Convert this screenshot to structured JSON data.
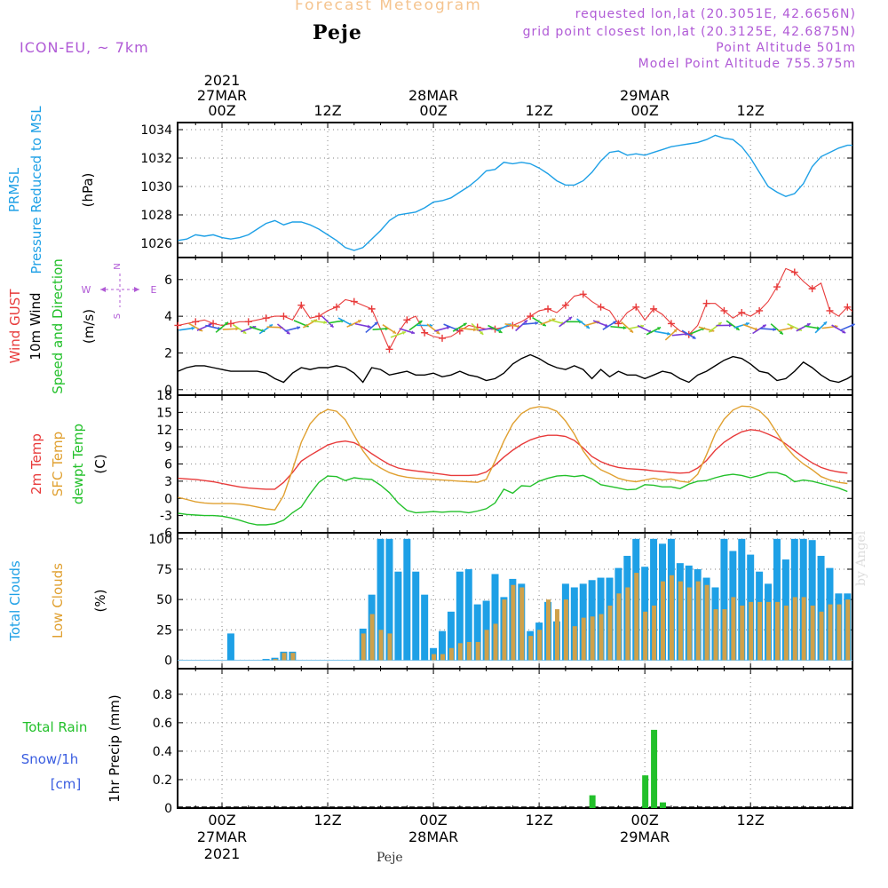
{
  "header": {
    "title": "Forecast Meteogram",
    "location": "Peje",
    "model": "ICON-EU, ~ 7km",
    "requested": "requested lon,lat (20.3051E, 42.6656N)",
    "gridpoint": "grid point closest lon,lat (20.3125E, 42.6875N)",
    "point_alt": "Point Altitude 501m",
    "model_alt": "Model Point Altitude 755.375m",
    "footer_location": "Peje",
    "watermark": "by Angel"
  },
  "time_axis": {
    "labels_top": [
      {
        "h": 0,
        "lines": [
          "2021",
          "27MAR",
          "00Z"
        ]
      },
      {
        "h": 12,
        "lines": [
          "12Z"
        ]
      },
      {
        "h": 24,
        "lines": [
          "28MAR",
          "00Z"
        ]
      },
      {
        "h": 36,
        "lines": [
          "12Z"
        ]
      },
      {
        "h": 48,
        "lines": [
          "29MAR",
          "00Z"
        ]
      },
      {
        "h": 60,
        "lines": [
          "12Z"
        ]
      }
    ],
    "labels_bottom": [
      {
        "h": 0,
        "lines": [
          "00Z",
          "27MAR",
          "2021"
        ]
      },
      {
        "h": 12,
        "lines": [
          "12Z"
        ]
      },
      {
        "h": 24,
        "lines": [
          "00Z",
          "28MAR"
        ]
      },
      {
        "h": 36,
        "lines": [
          "12Z"
        ]
      },
      {
        "h": 48,
        "lines": [
          "00Z",
          "29MAR"
        ]
      },
      {
        "h": 60,
        "lines": [
          "12Z"
        ]
      }
    ]
  },
  "chart_data": [
    {
      "type": "line",
      "id": "pressure",
      "ylabel_lines": [
        {
          "text": "PRMSL",
          "color": "#1ea0e6"
        },
        {
          "text": "Pressure Reduced to MSL",
          "color": "#1ea0e6"
        },
        {
          "text": "(hPa)",
          "color": "#000000"
        }
      ],
      "ylim": [
        1025,
        1034.5
      ],
      "yticks": [
        1026,
        1028,
        1030,
        1032,
        1034
      ],
      "x_start": -5,
      "x_step": 1,
      "series": [
        {
          "color": "#1ea0e6",
          "values": [
            1026.2,
            1026.3,
            1026.6,
            1026.5,
            1026.6,
            1026.4,
            1026.3,
            1026.4,
            1026.6,
            1027.0,
            1027.4,
            1027.6,
            1027.3,
            1027.5,
            1027.5,
            1027.3,
            1027.0,
            1026.6,
            1026.2,
            1025.7,
            1025.5,
            1025.7,
            1026.3,
            1026.9,
            1027.6,
            1028.0,
            1028.1,
            1028.2,
            1028.5,
            1028.9,
            1029.0,
            1029.2,
            1029.6,
            1030.0,
            1030.5,
            1031.1,
            1031.2,
            1031.7,
            1031.6,
            1031.7,
            1031.6,
            1031.3,
            1030.9,
            1030.4,
            1030.1,
            1030.1,
            1030.4,
            1031.0,
            1031.8,
            1032.4,
            1032.5,
            1032.2,
            1032.3,
            1032.2,
            1032.4,
            1032.6,
            1032.8,
            1032.9,
            1033.0,
            1033.1,
            1033.3,
            1033.6,
            1033.4,
            1033.3,
            1032.8,
            1032.0,
            1031.0,
            1030.0,
            1029.6,
            1029.3,
            1029.5,
            1030.2,
            1031.4,
            1032.1,
            1032.4,
            1032.7,
            1032.9,
            1032.9
          ]
        }
      ]
    },
    {
      "type": "line",
      "id": "wind",
      "ylabel_lines": [
        {
          "text": "Wind GUST",
          "color": "#e83a3a"
        },
        {
          "text": "10m Wind",
          "color": "#000000"
        },
        {
          "text": "Speed and Direction",
          "color": "#22c02a"
        },
        {
          "text": "(m/s)",
          "color": "#000000"
        }
      ],
      "compass": {
        "n": "N",
        "s": "S",
        "e": "E",
        "w": "W",
        "color": "#b05ad6"
      },
      "ylim": [
        -0.3,
        7.2
      ],
      "yticks": [
        0,
        2,
        4,
        6
      ],
      "x_start": -5,
      "x_step": 1,
      "series": [
        {
          "name": "Wind GUST",
          "color": "#e83a3a",
          "marker": "plus",
          "values": [
            3.5,
            3.6,
            3.7,
            3.8,
            3.6,
            3.5,
            3.6,
            3.7,
            3.7,
            3.8,
            3.9,
            4.0,
            4.0,
            3.8,
            4.6,
            3.9,
            4.0,
            4.3,
            4.5,
            4.9,
            4.8,
            4.6,
            4.4,
            3.3,
            2.2,
            3.1,
            3.8,
            4.0,
            3.1,
            2.9,
            2.8,
            2.9,
            3.2,
            3.5,
            3.4,
            3.3,
            3.3,
            3.4,
            3.5,
            3.7,
            4.0,
            4.3,
            4.4,
            4.2,
            4.6,
            5.1,
            5.2,
            4.8,
            4.5,
            4.3,
            3.6,
            4.2,
            4.5,
            3.8,
            4.4,
            4.1,
            3.6,
            3.2,
            3.0,
            3.5,
            4.7,
            4.7,
            4.3,
            3.9,
            4.2,
            4.0,
            4.3,
            4.8,
            5.6,
            6.6,
            6.4,
            5.9,
            5.5,
            5.8,
            4.3,
            4.0,
            4.5,
            4.1,
            4.0,
            4.2,
            4.3,
            4.4,
            4.5
          ]
        },
        {
          "name": "10m Wind",
          "color": "#000000",
          "values": [
            1.0,
            1.2,
            1.3,
            1.3,
            1.2,
            1.1,
            1.0,
            1.0,
            1.0,
            1.0,
            0.9,
            0.6,
            0.4,
            0.9,
            1.2,
            1.1,
            1.2,
            1.2,
            1.3,
            1.2,
            0.9,
            0.4,
            1.2,
            1.1,
            0.8,
            0.9,
            1.0,
            0.8,
            0.8,
            0.9,
            0.7,
            0.8,
            1.0,
            0.8,
            0.7,
            0.5,
            0.6,
            0.9,
            1.4,
            1.7,
            1.9,
            1.7,
            1.4,
            1.2,
            1.1,
            1.3,
            1.1,
            0.6,
            1.1,
            0.7,
            1.0,
            0.8,
            0.8,
            0.6,
            0.8,
            1.0,
            0.9,
            0.6,
            0.4,
            0.8,
            1.0,
            1.3,
            1.6,
            1.8,
            1.7,
            1.4,
            1.0,
            0.9,
            0.5,
            0.6,
            1.0,
            1.5,
            1.2,
            0.8,
            0.5,
            0.4,
            0.6,
            0.9
          ]
        },
        {
          "name": "Wind Direction",
          "type": "arrows",
          "values": [
            3.2,
            3.3,
            3.4,
            3.4,
            3.4,
            3.4,
            3.3,
            3.3,
            3.3,
            3.3,
            3.3,
            3.4,
            3.3,
            3.3,
            3.6,
            3.6,
            3.7,
            3.7,
            3.7,
            3.7,
            3.6,
            3.5,
            3.4,
            3.3,
            3.3,
            3.0,
            3.2,
            3.5,
            3.5,
            3.3,
            3.3,
            3.4,
            3.4,
            3.3,
            3.3,
            3.3,
            3.3,
            3.4,
            3.5,
            3.5,
            3.6,
            3.7,
            3.7,
            3.7,
            3.7,
            3.7,
            3.6,
            3.6,
            3.6,
            3.5,
            3.4,
            3.4,
            3.4,
            3.3,
            3.2,
            3.1,
            3.0,
            3.0,
            3.0,
            3.2,
            3.3,
            3.4,
            3.5,
            3.5,
            3.5,
            3.4,
            3.3,
            3.3,
            3.3,
            3.3,
            3.4,
            3.4,
            3.4,
            3.4,
            3.4,
            3.3,
            3.4,
            3.5,
            3.5,
            3.4,
            3.3,
            3.3,
            3.2
          ]
        }
      ]
    },
    {
      "type": "line",
      "id": "temperature",
      "ylabel_lines": [
        {
          "text": "2m Temp",
          "color": "#e83a3a"
        },
        {
          "text": "SFC Temp",
          "color": "#e0a030"
        },
        {
          "text": "dewpt Temp",
          "color": "#22c02a"
        },
        {
          "text": "(C)",
          "color": "#000000"
        }
      ],
      "ylim": [
        -6,
        18
      ],
      "yticks": [
        -6,
        -3,
        0,
        3,
        6,
        9,
        12,
        15,
        18
      ],
      "x_start": -5,
      "x_step": 1,
      "series": [
        {
          "name": "2m Temp",
          "color": "#e83a3a",
          "values": [
            3.5,
            3.4,
            3.3,
            3.1,
            2.9,
            2.6,
            2.3,
            2.0,
            1.8,
            1.7,
            1.6,
            1.6,
            2.8,
            4.5,
            6.5,
            7.5,
            8.4,
            9.3,
            9.8,
            10.0,
            9.7,
            8.9,
            7.8,
            6.8,
            5.9,
            5.3,
            5.0,
            4.8,
            4.6,
            4.4,
            4.2,
            4.0,
            4.0,
            4.0,
            4.1,
            4.6,
            5.8,
            7.2,
            8.4,
            9.4,
            10.2,
            10.7,
            11.0,
            11.0,
            10.8,
            10.1,
            8.8,
            7.3,
            6.4,
            5.8,
            5.4,
            5.2,
            5.1,
            5.0,
            4.8,
            4.7,
            4.5,
            4.4,
            4.5,
            5.3,
            6.6,
            8.4,
            9.8,
            10.8,
            11.6,
            12.0,
            11.8,
            11.2,
            10.5,
            9.5,
            8.3,
            7.2,
            6.2,
            5.4,
            4.9,
            4.6,
            4.4
          ]
        },
        {
          "name": "SFC Temp",
          "color": "#e0a030",
          "values": [
            0.2,
            -0.2,
            -0.6,
            -0.8,
            -0.9,
            -0.9,
            -0.9,
            -1.0,
            -1.2,
            -1.5,
            -1.8,
            -2.0,
            0.5,
            5.0,
            9.8,
            13.0,
            14.7,
            15.5,
            15.2,
            13.7,
            11.0,
            8.3,
            6.3,
            5.3,
            4.5,
            4.0,
            3.7,
            3.5,
            3.4,
            3.3,
            3.2,
            3.1,
            3.0,
            2.9,
            2.8,
            3.3,
            6.5,
            10.0,
            13.0,
            14.8,
            15.7,
            16.0,
            15.8,
            15.2,
            13.5,
            11.2,
            8.3,
            6.2,
            5.0,
            4.3,
            3.5,
            3.1,
            2.9,
            3.2,
            3.5,
            3.2,
            3.4,
            3.0,
            2.8,
            4.2,
            7.6,
            11.3,
            13.8,
            15.4,
            16.1,
            16.0,
            15.3,
            13.8,
            11.4,
            9.0,
            7.3,
            6.0,
            5.0,
            3.8,
            3.2,
            2.8,
            2.6
          ]
        },
        {
          "name": "dewpt Temp",
          "color": "#22c02a",
          "values": [
            -2.6,
            -2.8,
            -2.9,
            -3.0,
            -3.0,
            -3.1,
            -3.4,
            -3.8,
            -4.3,
            -4.6,
            -4.6,
            -4.4,
            -3.8,
            -2.5,
            -1.5,
            0.8,
            2.8,
            3.9,
            3.8,
            3.1,
            3.6,
            3.4,
            3.3,
            2.3,
            1.0,
            -0.8,
            -2.1,
            -2.5,
            -2.4,
            -2.3,
            -2.4,
            -2.3,
            -2.3,
            -2.5,
            -2.2,
            -1.8,
            -0.8,
            1.6,
            0.9,
            2.2,
            2.1,
            3.0,
            3.5,
            3.9,
            4.0,
            3.8,
            4.0,
            3.4,
            2.4,
            2.1,
            1.8,
            1.5,
            1.6,
            2.4,
            2.3,
            2.0,
            2.0,
            1.7,
            2.5,
            3.0,
            3.1,
            3.6,
            4.0,
            4.2,
            4.0,
            3.6,
            4.0,
            4.5,
            4.5,
            4.0,
            2.9,
            3.2,
            3.0,
            2.6,
            2.2,
            1.8,
            1.2
          ]
        }
      ]
    },
    {
      "type": "bar",
      "id": "clouds",
      "ylabel_lines": [
        {
          "text": "Total Clouds",
          "color": "#1ea0e6"
        },
        {
          "text": "Low Clouds",
          "color": "#e0a030"
        },
        {
          "text": "(%)",
          "color": "#000000"
        }
      ],
      "ylim": [
        -7,
        105
      ],
      "yticks": [
        0,
        25,
        50,
        75,
        100
      ],
      "x_start": -5,
      "x_step": 1,
      "series": [
        {
          "name": "Total Clouds",
          "color": "#1ea0e6",
          "values": [
            0,
            0,
            0,
            0,
            0,
            0,
            22,
            0,
            0,
            0,
            1,
            2,
            7,
            7,
            0,
            0,
            0,
            0,
            0,
            0,
            0,
            26,
            54,
            100,
            100,
            73,
            100,
            73,
            54,
            10,
            24,
            40,
            73,
            75,
            46,
            49,
            71,
            52,
            67,
            63,
            24,
            31,
            48,
            32,
            63,
            60,
            63,
            66,
            68,
            68,
            76,
            86,
            100,
            77,
            100,
            96,
            100,
            80,
            78,
            75,
            68,
            60,
            100,
            90,
            100,
            87,
            73,
            63,
            100,
            83,
            100,
            100,
            99,
            86,
            76,
            55,
            55,
            58,
            68,
            100,
            97
          ]
        },
        {
          "name": "Low Clouds",
          "color": "#cfa14a",
          "values": [
            0,
            0,
            0,
            0,
            0,
            0,
            0,
            0,
            0,
            0,
            0,
            1,
            6,
            6,
            0,
            0,
            0,
            0,
            0,
            0,
            0,
            22,
            38,
            25,
            22,
            0,
            0,
            0,
            0,
            5,
            5,
            10,
            14,
            15,
            15,
            25,
            30,
            50,
            62,
            60,
            20,
            25,
            50,
            42,
            50,
            28,
            35,
            36,
            38,
            45,
            55,
            60,
            72,
            40,
            45,
            65,
            70,
            65,
            60,
            65,
            62,
            42,
            42,
            52,
            45,
            48,
            48,
            48,
            48,
            45,
            52,
            52,
            45,
            40,
            46,
            46,
            50,
            56,
            50,
            53,
            56
          ]
        }
      ]
    },
    {
      "type": "bar",
      "id": "precip",
      "ylabel_lines": [
        {
          "text": "Total  Rain",
          "color": "#22c02a"
        },
        {
          "text": "Snow/1h",
          "color": "#3a5de0"
        },
        {
          "text": "[cm]",
          "color": "#3a5de0"
        },
        {
          "text": "1hr Precip (mm)",
          "color": "#000000"
        }
      ],
      "ylim": [
        0,
        0.98
      ],
      "yticks": [
        0,
        0.2,
        0.4,
        0.6,
        0.8
      ],
      "ytick_labels": [
        "0",
        "0.2",
        "0.4",
        "0.6",
        "0.8"
      ],
      "bars": [
        {
          "h": 42,
          "value": 0.09,
          "color": "#22c02a"
        },
        {
          "h": 48,
          "value": 0.23,
          "color": "#22c02a"
        },
        {
          "h": 49,
          "value": 0.55,
          "color": "#22c02a"
        },
        {
          "h": 50,
          "value": 0.04,
          "color": "#22c02a"
        }
      ]
    }
  ]
}
